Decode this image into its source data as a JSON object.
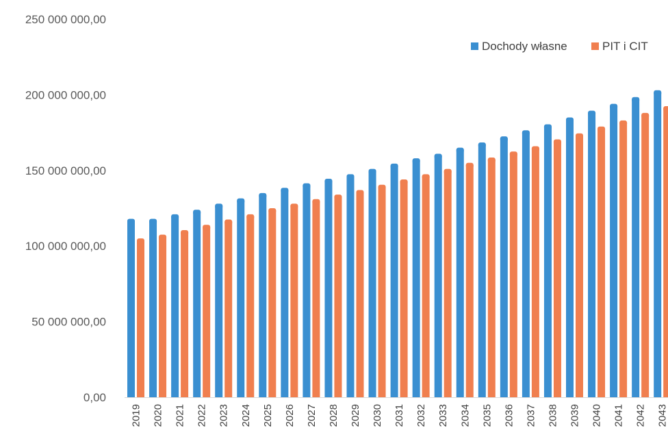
{
  "chart_data": {
    "type": "bar",
    "title": "",
    "xlabel": "",
    "ylabel": "",
    "ylim": [
      0,
      250000000
    ],
    "yticks": [
      0,
      50000000,
      100000000,
      150000000,
      200000000,
      250000000
    ],
    "ytick_labels": [
      "0,00",
      "50 000 000,00",
      "100 000 000,00",
      "150 000 000,00",
      "200 000 000,00",
      "250 000 000,00"
    ],
    "grid": false,
    "legend_position": "top-right",
    "categories": [
      "2019",
      "2020",
      "2021",
      "2022",
      "2023",
      "2024",
      "2025",
      "2026",
      "2027",
      "2028",
      "2029",
      "2030",
      "2031",
      "2032",
      "2033",
      "2034",
      "2035",
      "2036",
      "2037",
      "2038",
      "2039",
      "2040",
      "2041",
      "2042",
      "2043"
    ],
    "series": [
      {
        "name": "Dochody własne",
        "color": "#3a8fd1",
        "values": [
          118000000,
          118000000,
          121000000,
          124000000,
          128000000,
          131500000,
          135000000,
          138500000,
          141500000,
          144500000,
          147500000,
          151000000,
          154500000,
          158000000,
          161000000,
          165000000,
          168500000,
          172500000,
          176500000,
          180500000,
          185000000,
          189500000,
          194000000,
          198500000,
          203000000
        ]
      },
      {
        "name": "PIT i CIT",
        "color": "#f07f4f",
        "values": [
          105000000,
          107500000,
          110500000,
          114000000,
          117500000,
          121000000,
          125000000,
          128000000,
          131000000,
          134000000,
          137000000,
          140500000,
          144000000,
          147500000,
          151000000,
          155000000,
          158500000,
          162500000,
          166000000,
          170500000,
          174500000,
          179000000,
          183000000,
          188000000,
          192500000
        ]
      }
    ]
  }
}
